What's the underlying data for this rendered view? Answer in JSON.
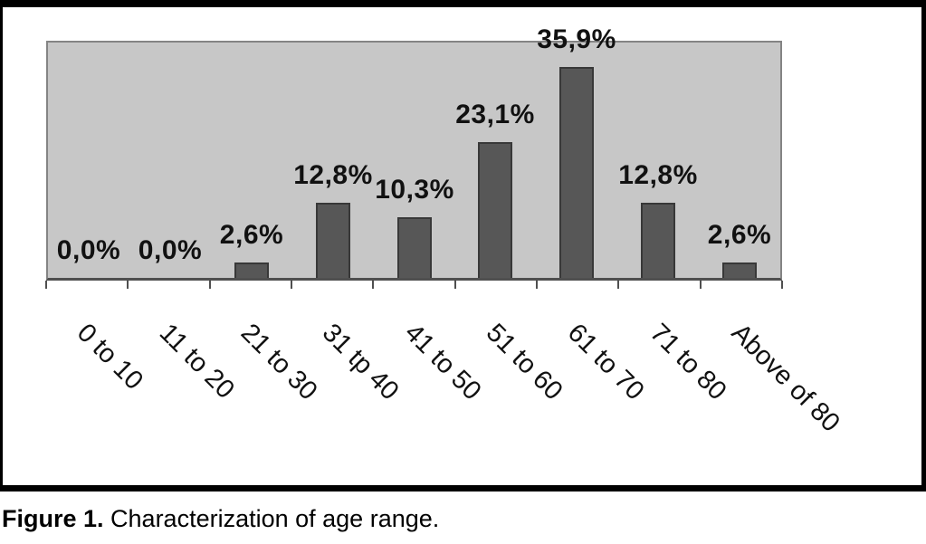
{
  "figure": {
    "caption_label": "Figure 1.",
    "caption_text": " Characterization of age range."
  },
  "colors": {
    "frame": "#000000",
    "plot_bg": "#c7c7c7",
    "plot_border": "#848484",
    "axis": "#4f4f4f",
    "bar_fill": "#575757",
    "bar_border": "#383838",
    "text": "#111111"
  },
  "chart_data": {
    "type": "bar",
    "title": "",
    "xlabel": "",
    "ylabel": "",
    "categories": [
      "0 to 10",
      "11 to 20",
      "21 to 30",
      "31 tp 40",
      "41 to 50",
      "51 to 60",
      "61 to 70",
      "71 to 80",
      "Above of 80"
    ],
    "values": [
      0.0,
      0.0,
      2.6,
      12.8,
      10.3,
      23.1,
      35.9,
      12.8,
      2.6
    ],
    "value_labels": [
      "0,0%",
      "0,0%",
      "2,6%",
      "12,8%",
      "10,3%",
      "23,1%",
      "35,9%",
      "12,8%",
      "2,6%"
    ],
    "ylim": [
      0,
      40
    ],
    "grid": false,
    "legend": null,
    "x_tick_rotation_deg": 45
  }
}
